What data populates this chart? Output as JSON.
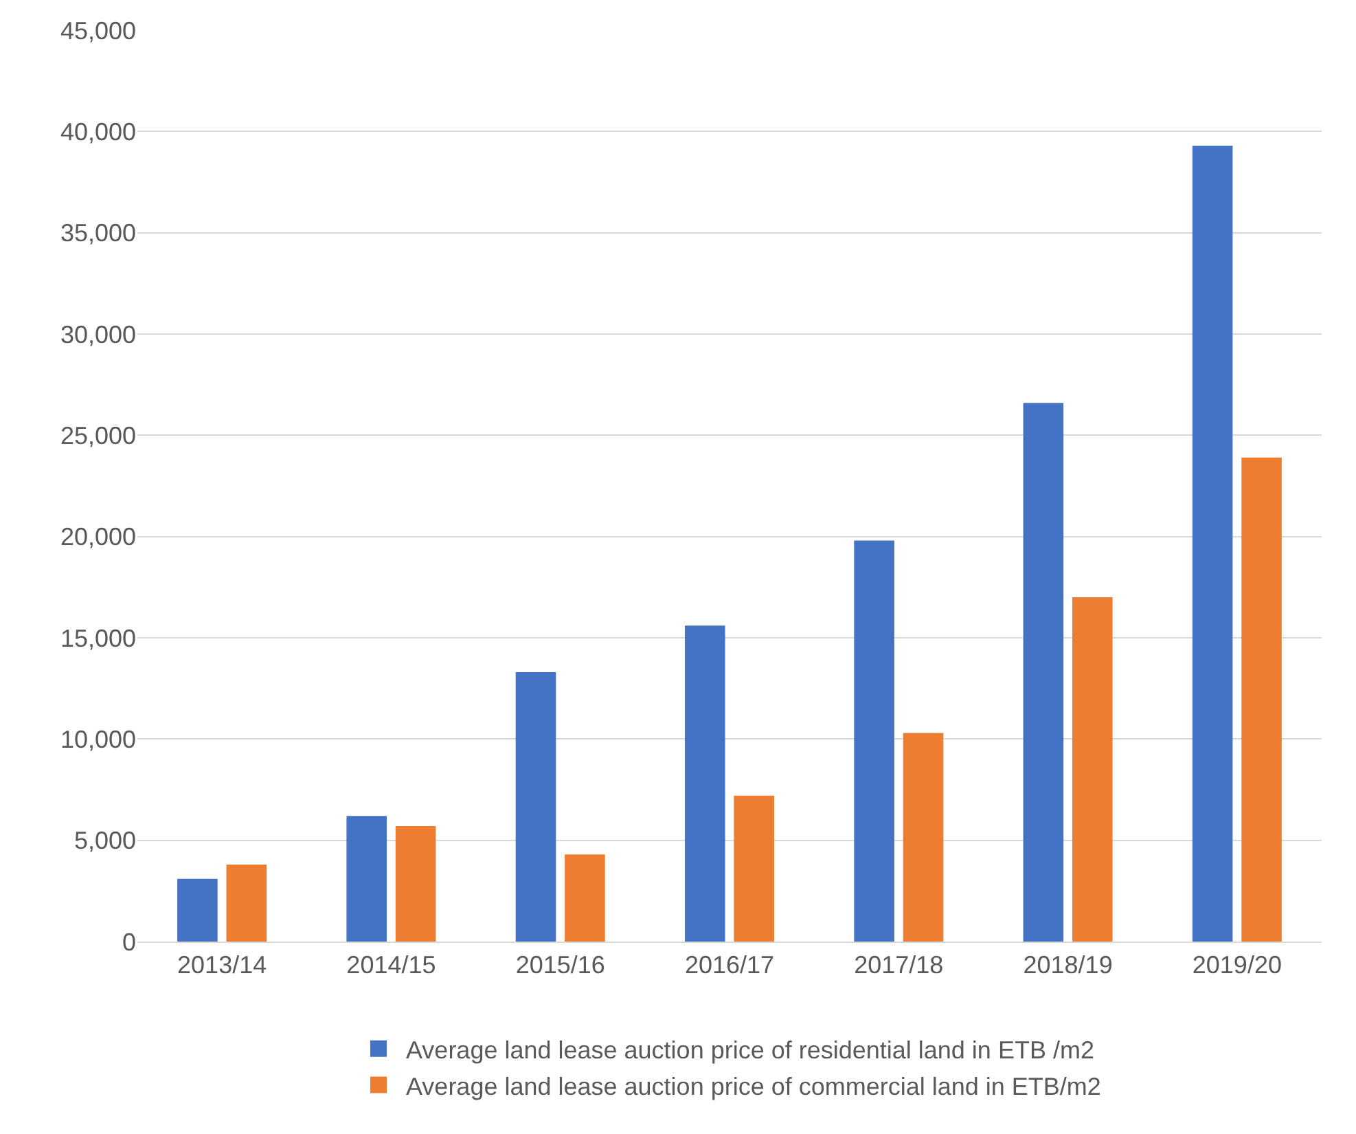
{
  "chart_data": {
    "type": "bar",
    "categories": [
      "2013/14",
      "2014/15",
      "2015/16",
      "2016/17",
      "2017/18",
      "2018/19",
      "2019/20"
    ],
    "series": [
      {
        "name": "Average land lease auction price of residential land in ETB /m2",
        "color": "#4472c4",
        "values": [
          3100,
          6200,
          13300,
          15600,
          19800,
          26600,
          39300
        ]
      },
      {
        "name": "Average land lease auction price of commercial land in ETB/m2",
        "color": "#ed7d31",
        "values": [
          3800,
          5700,
          4300,
          7200,
          10300,
          17000,
          23900
        ]
      }
    ],
    "ylim": [
      0,
      45000
    ],
    "yticks": [
      {
        "value": 0,
        "label": "0"
      },
      {
        "value": 5000,
        "label": "5,000"
      },
      {
        "value": 10000,
        "label": "10,000"
      },
      {
        "value": 15000,
        "label": "15,000"
      },
      {
        "value": 20000,
        "label": "20,000"
      },
      {
        "value": 25000,
        "label": "25,000"
      },
      {
        "value": 30000,
        "label": "30,000"
      },
      {
        "value": 35000,
        "label": "35,000"
      },
      {
        "value": 40000,
        "label": "40,000"
      },
      {
        "value": 45000,
        "label": "45,000"
      }
    ],
    "grid": "y",
    "legend": "bottom"
  }
}
